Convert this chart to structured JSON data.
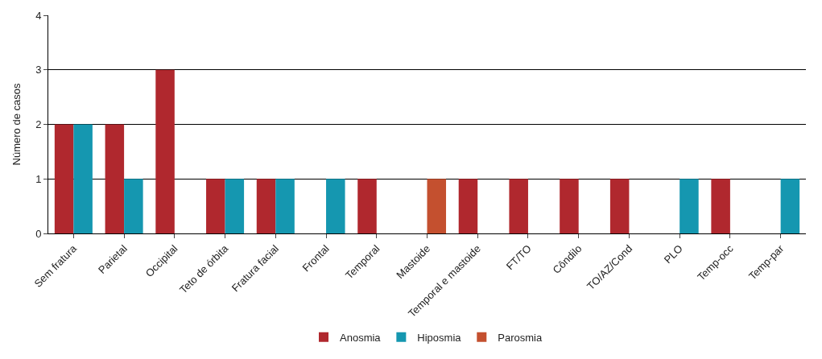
{
  "chart_data": {
    "type": "bar",
    "ylabel": "Número de casos",
    "categories": [
      "Sem fratura",
      "Parietal",
      "Occipital",
      "Teto de órbita",
      "Fratura facial",
      "Frontal",
      "Temporal",
      "Mastoide",
      "Temporal e mastoide",
      "FT/TO",
      "Côndilo",
      "TO/AZ/Cond",
      "PLO",
      "Temp-occ",
      "Temp-par"
    ],
    "series": [
      {
        "name": "Anosmia",
        "color": "#b0282e",
        "values": [
          2,
          2,
          3,
          1,
          1,
          null,
          1,
          null,
          1,
          1,
          1,
          1,
          null,
          1,
          null
        ]
      },
      {
        "name": "Hiposmia",
        "color": "#1597b0",
        "values": [
          2,
          1,
          null,
          1,
          1,
          1,
          null,
          null,
          null,
          null,
          null,
          null,
          1,
          null,
          1
        ]
      },
      {
        "name": "Parosmia",
        "color": "#c4502f",
        "values": [
          null,
          null,
          null,
          null,
          null,
          null,
          null,
          1,
          null,
          null,
          null,
          null,
          null,
          null,
          null
        ]
      }
    ],
    "ylim": [
      0,
      4
    ],
    "yticks": [
      0,
      1,
      2,
      3,
      4
    ],
    "grid": "y",
    "legend": "bottom"
  }
}
